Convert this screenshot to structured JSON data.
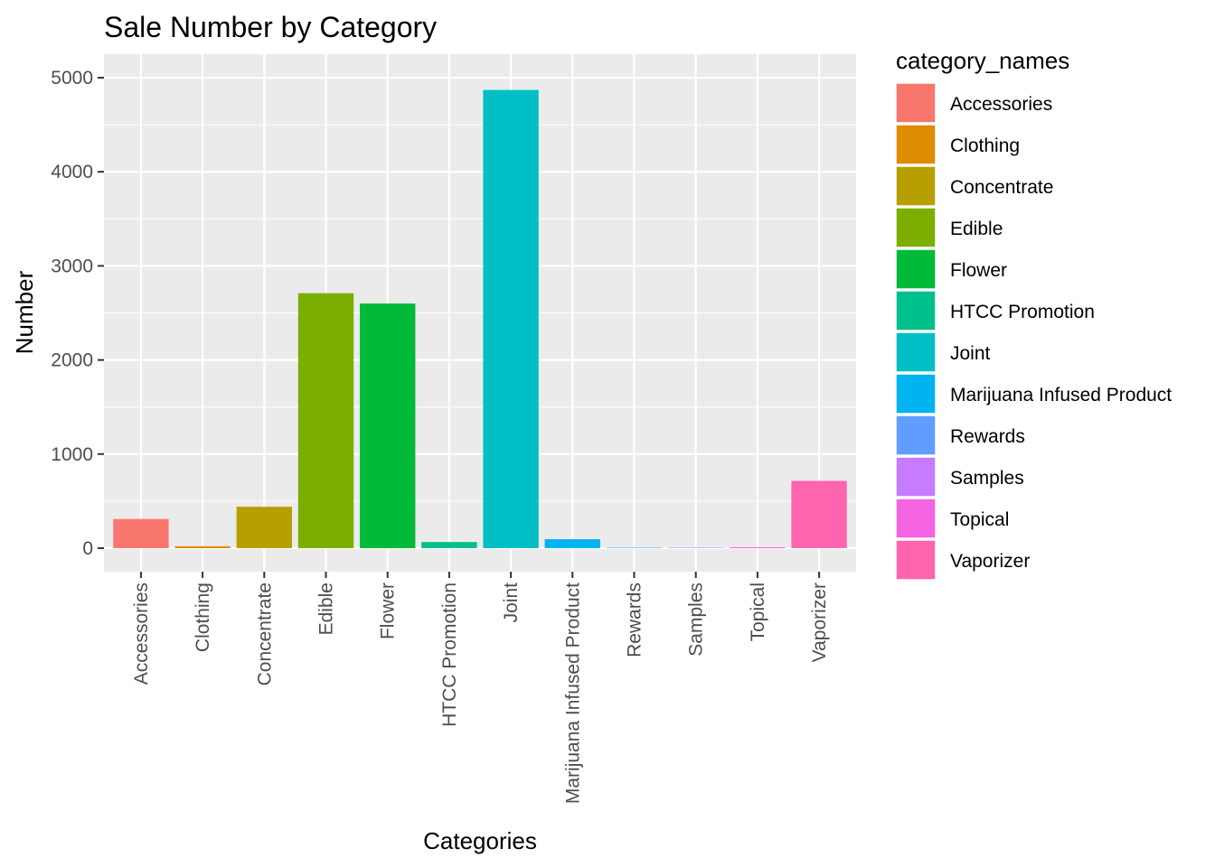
{
  "chart_data": {
    "type": "bar",
    "title": "Sale Number by Category",
    "xlabel": "Categories",
    "ylabel": "Number",
    "ylim": [
      -250,
      5250
    ],
    "yticks": [
      0,
      1000,
      2000,
      3000,
      4000,
      5000
    ],
    "grid": true,
    "legend_placement": "right",
    "legend_title": "category_names",
    "categories": [
      "Accessories",
      "Clothing",
      "Concentrate",
      "Edible",
      "Flower",
      "HTCC Promotion",
      "Joint",
      "Marijuana Infused Product",
      "Rewards",
      "Samples",
      "Topical",
      "Vaporizer"
    ],
    "values": [
      310,
      20,
      440,
      2710,
      2600,
      65,
      4870,
      95,
      2,
      2,
      10,
      715
    ],
    "colors": [
      "#F8766D",
      "#DE8C00",
      "#B79F00",
      "#7CAE00",
      "#00BA38",
      "#00C08B",
      "#00BFC4",
      "#00B4F0",
      "#619CFF",
      "#C77CFF",
      "#F564E3",
      "#FF64B0"
    ],
    "panel_background": "#EBEBEB",
    "gridline_color": "#FFFFFF"
  }
}
